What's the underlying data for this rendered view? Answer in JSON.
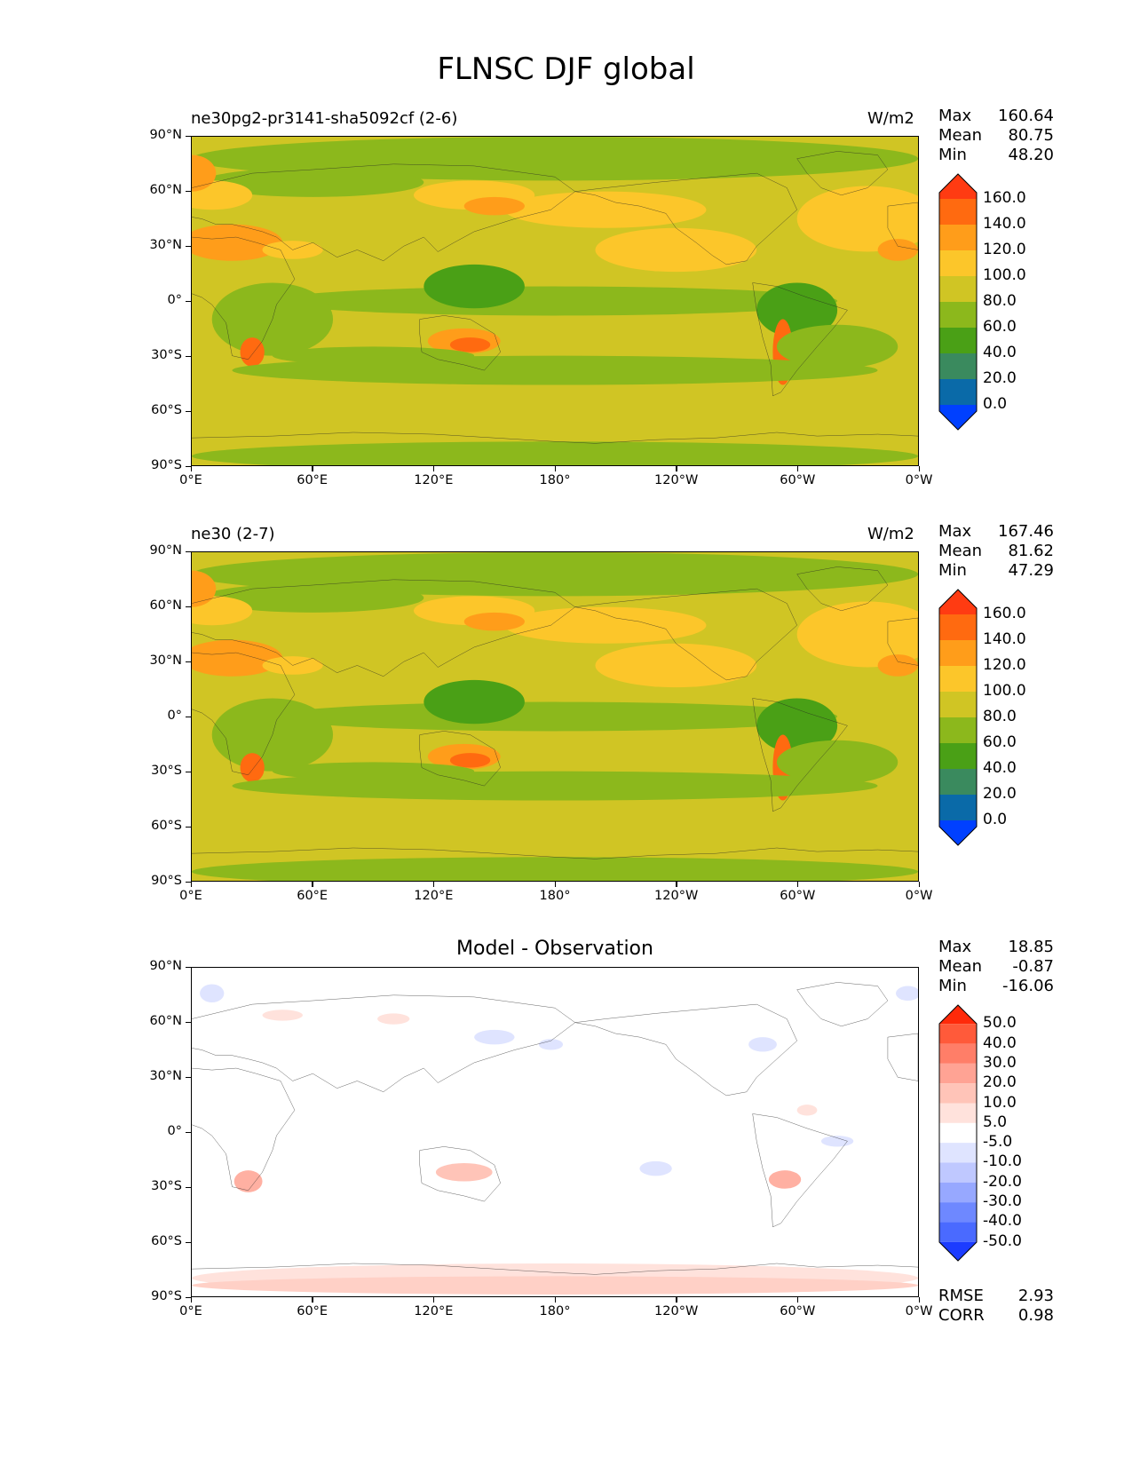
{
  "figure_title": "FLNSC DJF global",
  "lat_labels": [
    "90°N",
    "60°N",
    "30°N",
    "0°",
    "30°S",
    "60°S",
    "90°S"
  ],
  "lon_labels": [
    "0°E",
    "60°E",
    "120°E",
    "180°",
    "120°W",
    "60°W",
    "0°W"
  ],
  "panels": [
    {
      "left_title": "ne30pg2-pr3141-sha5092cf (2-6)",
      "right_title": "W/m2",
      "center_title": "",
      "stats": {
        "max_label": "Max",
        "max": "160.64",
        "mean_label": "Mean",
        "mean": "80.75",
        "min_label": "Min",
        "min": "48.20"
      },
      "colorbar_levels": [
        "160.0",
        "140.0",
        "120.0",
        "100.0",
        "80.0",
        "60.0",
        "40.0",
        "20.0",
        "0.0"
      ],
      "colorbar_colors": [
        "#ff3b12",
        "#ff6a10",
        "#ff9d1a",
        "#fcc62a",
        "#d0c524",
        "#8cb81c",
        "#4aa016",
        "#3a8a5e",
        "#0a6aa8",
        "#0040ff"
      ]
    },
    {
      "left_title": "ne30 (2-7)",
      "right_title": "W/m2",
      "center_title": "",
      "stats": {
        "max_label": "Max",
        "max": "167.46",
        "mean_label": "Mean",
        "mean": "81.62",
        "min_label": "Min",
        "min": "47.29"
      },
      "colorbar_levels": [
        "160.0",
        "140.0",
        "120.0",
        "100.0",
        "80.0",
        "60.0",
        "40.0",
        "20.0",
        "0.0"
      ],
      "colorbar_colors": [
        "#ff3b12",
        "#ff6a10",
        "#ff9d1a",
        "#fcc62a",
        "#d0c524",
        "#8cb81c",
        "#4aa016",
        "#3a8a5e",
        "#0a6aa8",
        "#0040ff"
      ]
    },
    {
      "left_title": "",
      "right_title": "",
      "center_title": "Model - Observation",
      "stats": {
        "max_label": "Max",
        "max": "18.85",
        "mean_label": "Mean",
        "mean": "-0.87",
        "min_label": "Min",
        "min": "-16.06"
      },
      "colorbar_levels": [
        "50.0",
        "40.0",
        "30.0",
        "20.0",
        "10.0",
        "5.0",
        "-5.0",
        "-10.0",
        "-20.0",
        "-30.0",
        "-40.0",
        "-50.0"
      ],
      "colorbar_colors": [
        "#ff2a0a",
        "#ff5a3a",
        "#ff7e68",
        "#ffa394",
        "#ffc4b8",
        "#ffe2dc",
        "#ffffff",
        "#dfe4ff",
        "#bfc8ff",
        "#97a8ff",
        "#6e88ff",
        "#4a6aff",
        "#1c3cff"
      ],
      "footer": {
        "rmse_label": "RMSE",
        "rmse": "2.93",
        "corr_label": "CORR",
        "corr": "0.98"
      }
    }
  ]
}
